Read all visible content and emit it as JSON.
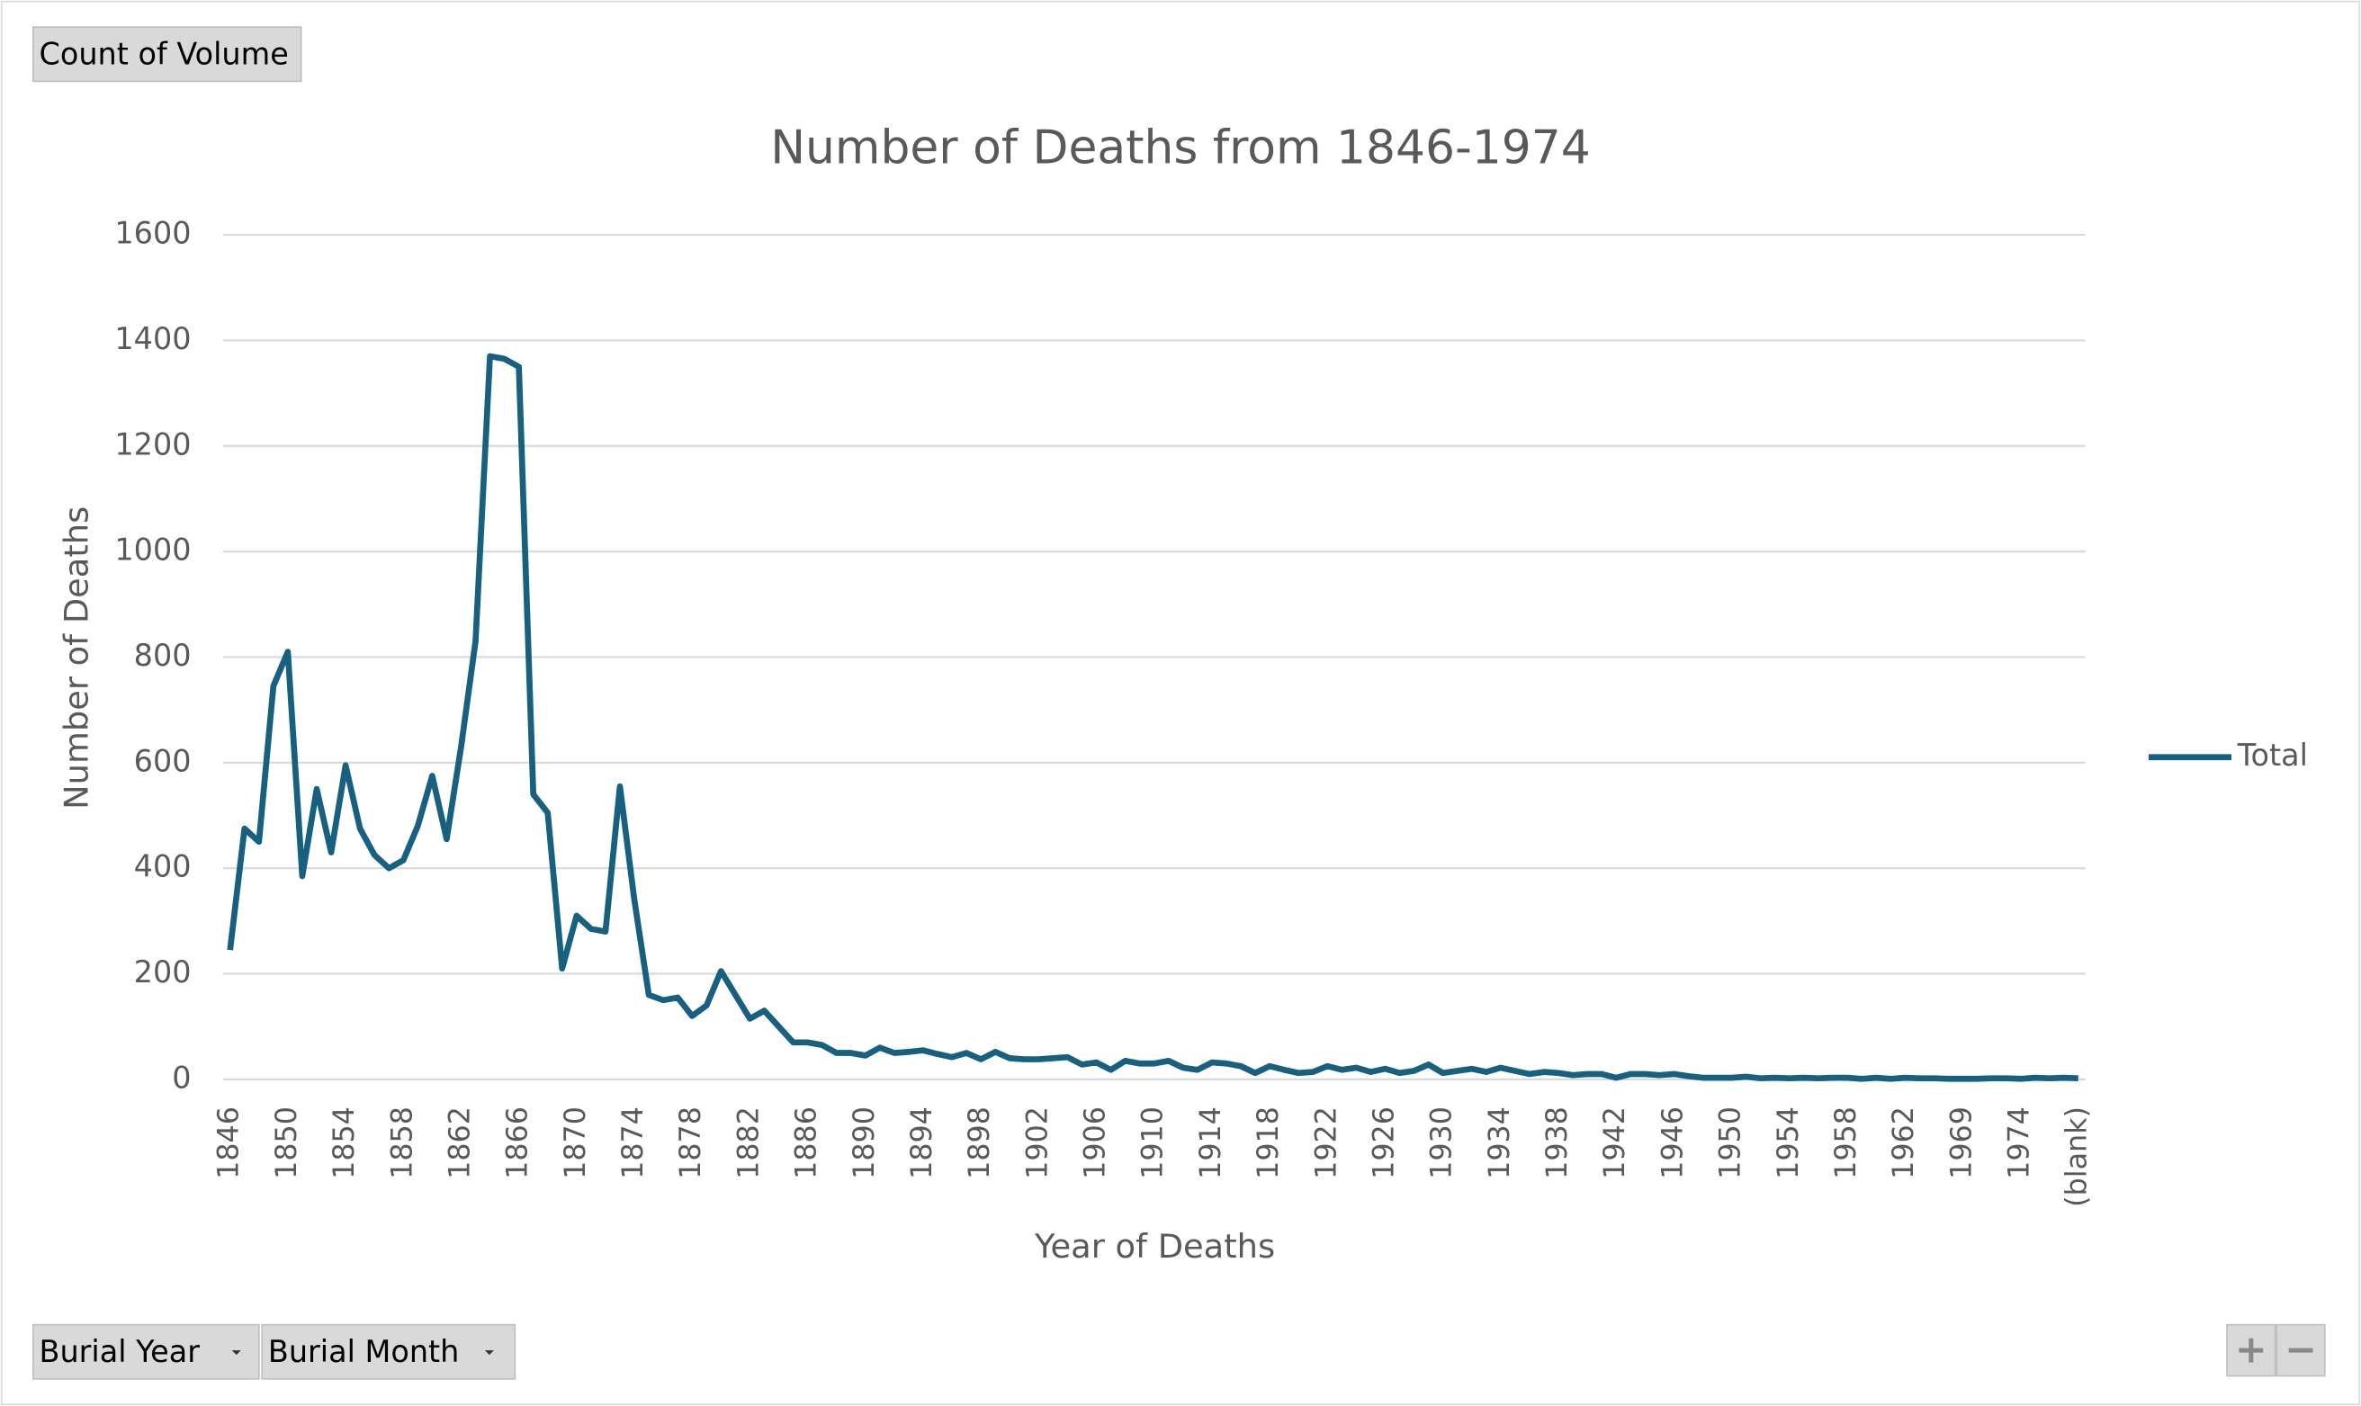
{
  "controls": {
    "value_field": "Count of Volume",
    "row_fields": [
      "Burial Year",
      "Burial Month"
    ]
  },
  "chart_data": {
    "type": "line",
    "title": "Number of Deaths from 1846-1974",
    "x_label": "Year of Deaths",
    "y_label": "Number of Deaths",
    "categories": [
      "1846",
      null,
      null,
      null,
      "1850",
      null,
      null,
      null,
      "1854",
      null,
      null,
      null,
      "1858",
      null,
      null,
      null,
      "1862",
      null,
      null,
      null,
      "1866",
      null,
      null,
      null,
      "1870",
      null,
      null,
      null,
      "1874",
      null,
      null,
      null,
      "1878",
      null,
      null,
      null,
      "1882",
      null,
      null,
      null,
      "1886",
      null,
      null,
      null,
      "1890",
      null,
      null,
      null,
      "1894",
      null,
      null,
      null,
      "1898",
      null,
      null,
      null,
      "1902",
      null,
      null,
      null,
      "1906",
      null,
      null,
      null,
      "1910",
      null,
      null,
      null,
      "1914",
      null,
      null,
      null,
      "1918",
      null,
      null,
      null,
      "1922",
      null,
      null,
      null,
      "1926",
      null,
      null,
      null,
      "1930",
      null,
      null,
      null,
      "1934",
      null,
      null,
      null,
      "1938",
      null,
      null,
      null,
      "1942",
      null,
      null,
      null,
      "1946",
      null,
      null,
      null,
      "1950",
      null,
      null,
      null,
      "1954",
      null,
      null,
      null,
      "1958",
      null,
      null,
      null,
      "1962",
      null,
      null,
      null,
      "1969",
      null,
      null,
      null,
      "1974",
      null,
      null,
      null,
      "(blank)"
    ],
    "series": [
      {
        "name": "Total",
        "color": "#17607f",
        "values": [
          245,
          475,
          450,
          745,
          810,
          385,
          550,
          430,
          595,
          475,
          425,
          400,
          415,
          480,
          575,
          455,
          630,
          830,
          1370,
          1365,
          1350,
          540,
          505,
          210,
          310,
          285,
          280,
          555,
          340,
          160,
          150,
          155,
          120,
          140,
          205,
          160,
          115,
          130,
          100,
          70,
          70,
          65,
          50,
          50,
          45,
          60,
          50,
          52,
          55,
          48,
          42,
          50,
          38,
          52,
          40,
          38,
          38,
          40,
          42,
          28,
          32,
          18,
          35,
          30,
          30,
          35,
          22,
          18,
          32,
          30,
          25,
          12,
          25,
          18,
          12,
          14,
          25,
          18,
          22,
          14,
          20,
          12,
          16,
          28,
          12,
          16,
          20,
          14,
          22,
          16,
          10,
          14,
          12,
          8,
          10,
          10,
          3,
          10,
          10,
          8,
          10,
          6,
          3,
          3,
          3,
          5,
          2,
          3,
          2,
          3,
          2,
          3,
          3,
          1,
          3,
          1,
          3,
          2,
          2,
          1,
          1,
          1,
          2,
          2,
          1,
          3,
          2,
          3,
          2
        ]
      }
    ],
    "ylim": [
      0,
      1600
    ],
    "yticks": [
      0,
      200,
      400,
      600,
      800,
      1000,
      1200,
      1400,
      1600
    ],
    "grid": true,
    "legend": "right"
  }
}
